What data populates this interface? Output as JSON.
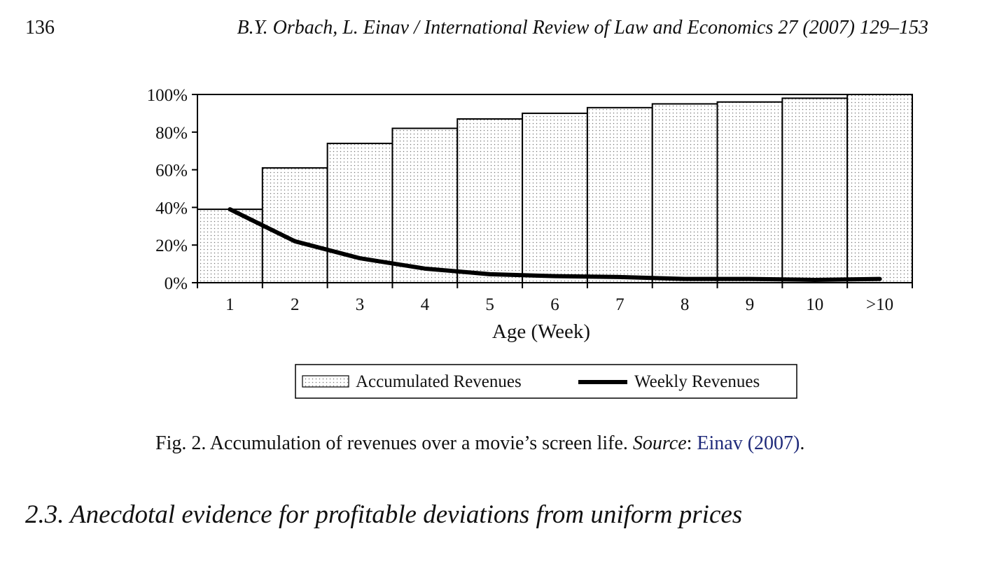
{
  "header": {
    "page_number": "136",
    "running_head": "B.Y. Orbach, L. Einav / International Review of Law and Economics 27 (2007) 129–153"
  },
  "chart_data": {
    "type": "bar",
    "categories": [
      "1",
      "2",
      "3",
      "4",
      "5",
      "6",
      "7",
      "8",
      "9",
      "10",
      ">10"
    ],
    "xlabel": "Age (Week)",
    "ylabel": "",
    "ylim": [
      0,
      100
    ],
    "yticks": [
      "0%",
      "20%",
      "40%",
      "60%",
      "80%",
      "100%"
    ],
    "legend_position": "bottom-center",
    "series": [
      {
        "name": "Accumulated Revenues",
        "kind": "bar",
        "pattern": "dotted",
        "values": [
          39,
          61,
          74,
          82,
          87,
          90,
          93,
          95,
          96,
          98,
          100
        ]
      },
      {
        "name": "Weekly Revenues",
        "kind": "line",
        "color": "#000000",
        "values": [
          39,
          22,
          13,
          7.5,
          4.5,
          3.5,
          3,
          2,
          2,
          1.5,
          2
        ]
      }
    ]
  },
  "caption": {
    "prefix": "Fig. 2.  Accumulation of revenues over a movie’s screen life. ",
    "source_label": "Source",
    "colon": ": ",
    "citation": "Einav (2007)",
    "end": "."
  },
  "section": {
    "heading": "2.3.  Anecdotal evidence for profitable deviations from uniform prices"
  }
}
